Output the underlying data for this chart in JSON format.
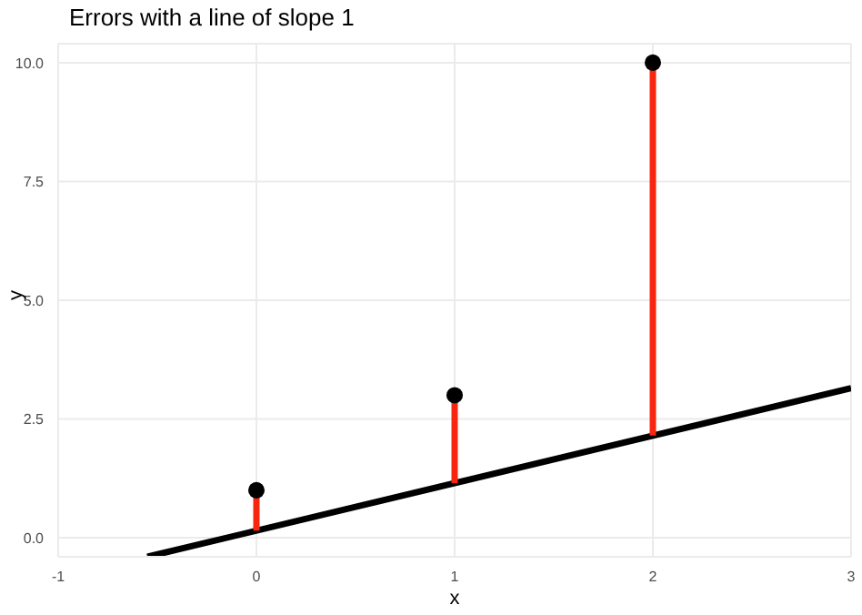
{
  "chart_data": {
    "type": "scatter",
    "title": "Errors with a line of slope 1",
    "xlabel": "x",
    "ylabel": "y",
    "xlim": [
      -1,
      3
    ],
    "xticks": [
      -1,
      0,
      1,
      2,
      3
    ],
    "ylim": [
      -0.4,
      10.4
    ],
    "yticks": [
      {
        "value": 0,
        "label": "0.0"
      },
      {
        "value": 2.5,
        "label": "2.5"
      },
      {
        "value": 5,
        "label": "5.0"
      },
      {
        "value": 7.5,
        "label": "7.5"
      },
      {
        "value": 10,
        "label": "10.0"
      }
    ],
    "grid": true,
    "marker": "circle",
    "series": [
      {
        "type": "line",
        "color": "#000000",
        "x": [
          -0.55,
          3
        ],
        "values": [
          -0.4,
          3.15
        ],
        "marker": "none"
      },
      {
        "type": "line",
        "color": "#f8250f",
        "x": [
          0,
          0
        ],
        "values": [
          0.15,
          1
        ],
        "marker": "none"
      },
      {
        "type": "line",
        "color": "#f8250f",
        "x": [
          1,
          1
        ],
        "values": [
          1.15,
          3
        ],
        "marker": "none"
      },
      {
        "type": "line",
        "color": "#f8250f",
        "x": [
          2,
          2
        ],
        "values": [
          2.15,
          10
        ],
        "marker": "none"
      },
      {
        "color": "#000000",
        "x": [
          0,
          1,
          2
        ],
        "values": [
          1,
          3,
          10
        ]
      }
    ]
  }
}
